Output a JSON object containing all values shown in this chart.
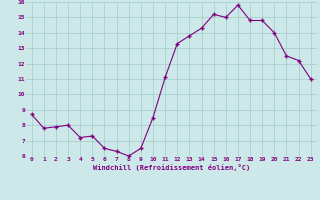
{
  "x": [
    0,
    1,
    2,
    3,
    4,
    5,
    6,
    7,
    8,
    9,
    10,
    11,
    12,
    13,
    14,
    15,
    16,
    17,
    18,
    19,
    20,
    21,
    22,
    23
  ],
  "y": [
    8.7,
    7.8,
    7.9,
    8.0,
    7.2,
    7.3,
    6.5,
    6.3,
    6.0,
    6.5,
    8.5,
    11.1,
    13.3,
    13.8,
    14.3,
    15.2,
    15.0,
    15.8,
    14.8,
    14.8,
    14.0,
    12.5,
    12.2,
    11.0
  ],
  "line_color": "#800080",
  "marker": "+",
  "marker_color": "#800080",
  "bg_color": "#cce8e8",
  "grid_color": "#a8d0d0",
  "xlabel": "Windchill (Refroidissement éolien,°C)",
  "xlabel_color": "#800080",
  "tick_color": "#800080",
  "ylim": [
    6,
    16
  ],
  "xlim": [
    -0.5,
    23.5
  ],
  "yticks": [
    6,
    7,
    8,
    9,
    10,
    11,
    12,
    13,
    14,
    15,
    16
  ],
  "xticks": [
    0,
    1,
    2,
    3,
    4,
    5,
    6,
    7,
    8,
    9,
    10,
    11,
    12,
    13,
    14,
    15,
    16,
    17,
    18,
    19,
    20,
    21,
    22,
    23
  ]
}
